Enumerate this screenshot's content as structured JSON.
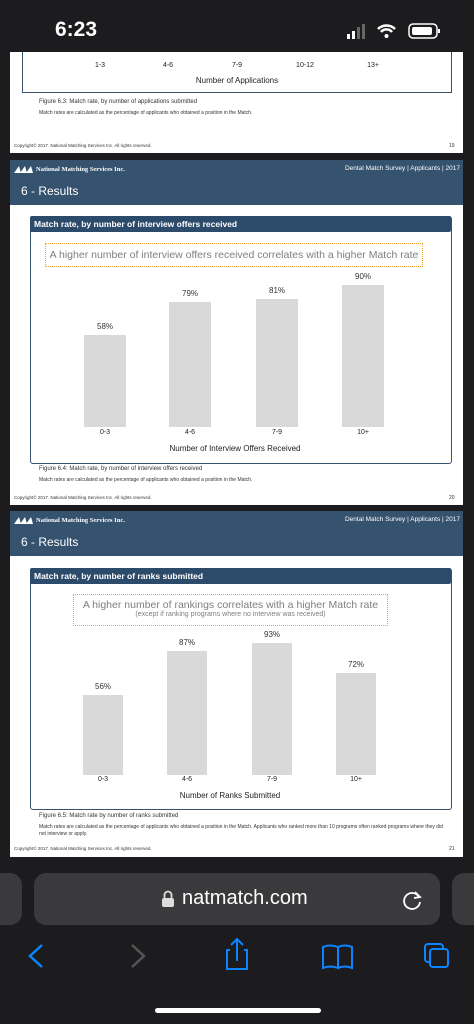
{
  "status_bar": {
    "time": "6:23"
  },
  "pages": [
    {
      "chart": {
        "categories": [
          "1-3",
          "4-6",
          "7-9",
          "10-12",
          "13+"
        ],
        "x_label": "Number of Applications"
      },
      "figure_caption": "Figure 6.3: Match rate, by number of applications submitted",
      "note": "Match rates are calculated as the percentage of applicants who obtained a position in the Match.",
      "copyright": "Copyright© 2017. National Matching Services Inc. All rights reserved.",
      "page_number": "19"
    },
    {
      "header": {
        "org": "National Matching Services Inc.",
        "report": "Dental Match Survey | Applicants | 2017",
        "section": "6 - Results"
      },
      "chart": {
        "type": "bar",
        "title": "Match rate, by number of interview offers received",
        "callout": "A higher number of interview offers received correlates with a higher Match rate",
        "categories": [
          "0-3",
          "4-6",
          "7-9",
          "10+"
        ],
        "values": [
          58,
          79,
          81,
          90
        ],
        "value_labels": [
          "58%",
          "79%",
          "81%",
          "90%"
        ],
        "color": "#d9d9d9",
        "x_label": "Number of Interview Offers Received"
      },
      "figure_caption": "Figure 6.4: Match rate, by number of interview offers received",
      "note": "Match rates are calculated as the percentage of applicants who obtained a position in the Match.",
      "copyright": "Copyright© 2017. National Matching Services Inc. All rights reserved.",
      "page_number": "20"
    },
    {
      "header": {
        "org": "National Matching Services Inc.",
        "report": "Dental Match Survey | Applicants | 2017",
        "section": "6 - Results"
      },
      "chart": {
        "type": "bar",
        "title": "Match rate, by number of ranks submitted",
        "callout": "A higher number of rankings correlates with a higher Match rate",
        "callout_sub": "(except if ranking programs where no interview was received)",
        "categories": [
          "0-3",
          "4-6",
          "7-9",
          "10+"
        ],
        "values": [
          56,
          87,
          93,
          72
        ],
        "value_labels": [
          "56%",
          "87%",
          "93%",
          "72%"
        ],
        "color": "#d9d9d9",
        "x_label": "Number of Ranks Submitted"
      },
      "figure_caption": "Figure 6.5: Match rate by number of ranks submitted",
      "note": "Match rates are calculated as the percentage of applicants who obtained a position in the Match. Applicants who ranked more than 10 programs often ranked programs where they did not interview or apply.",
      "copyright": "Copyright© 2017. National Matching Services Inc. All rights reserved.",
      "page_number": "21"
    }
  ],
  "browser": {
    "url": "natmatch.com"
  }
}
